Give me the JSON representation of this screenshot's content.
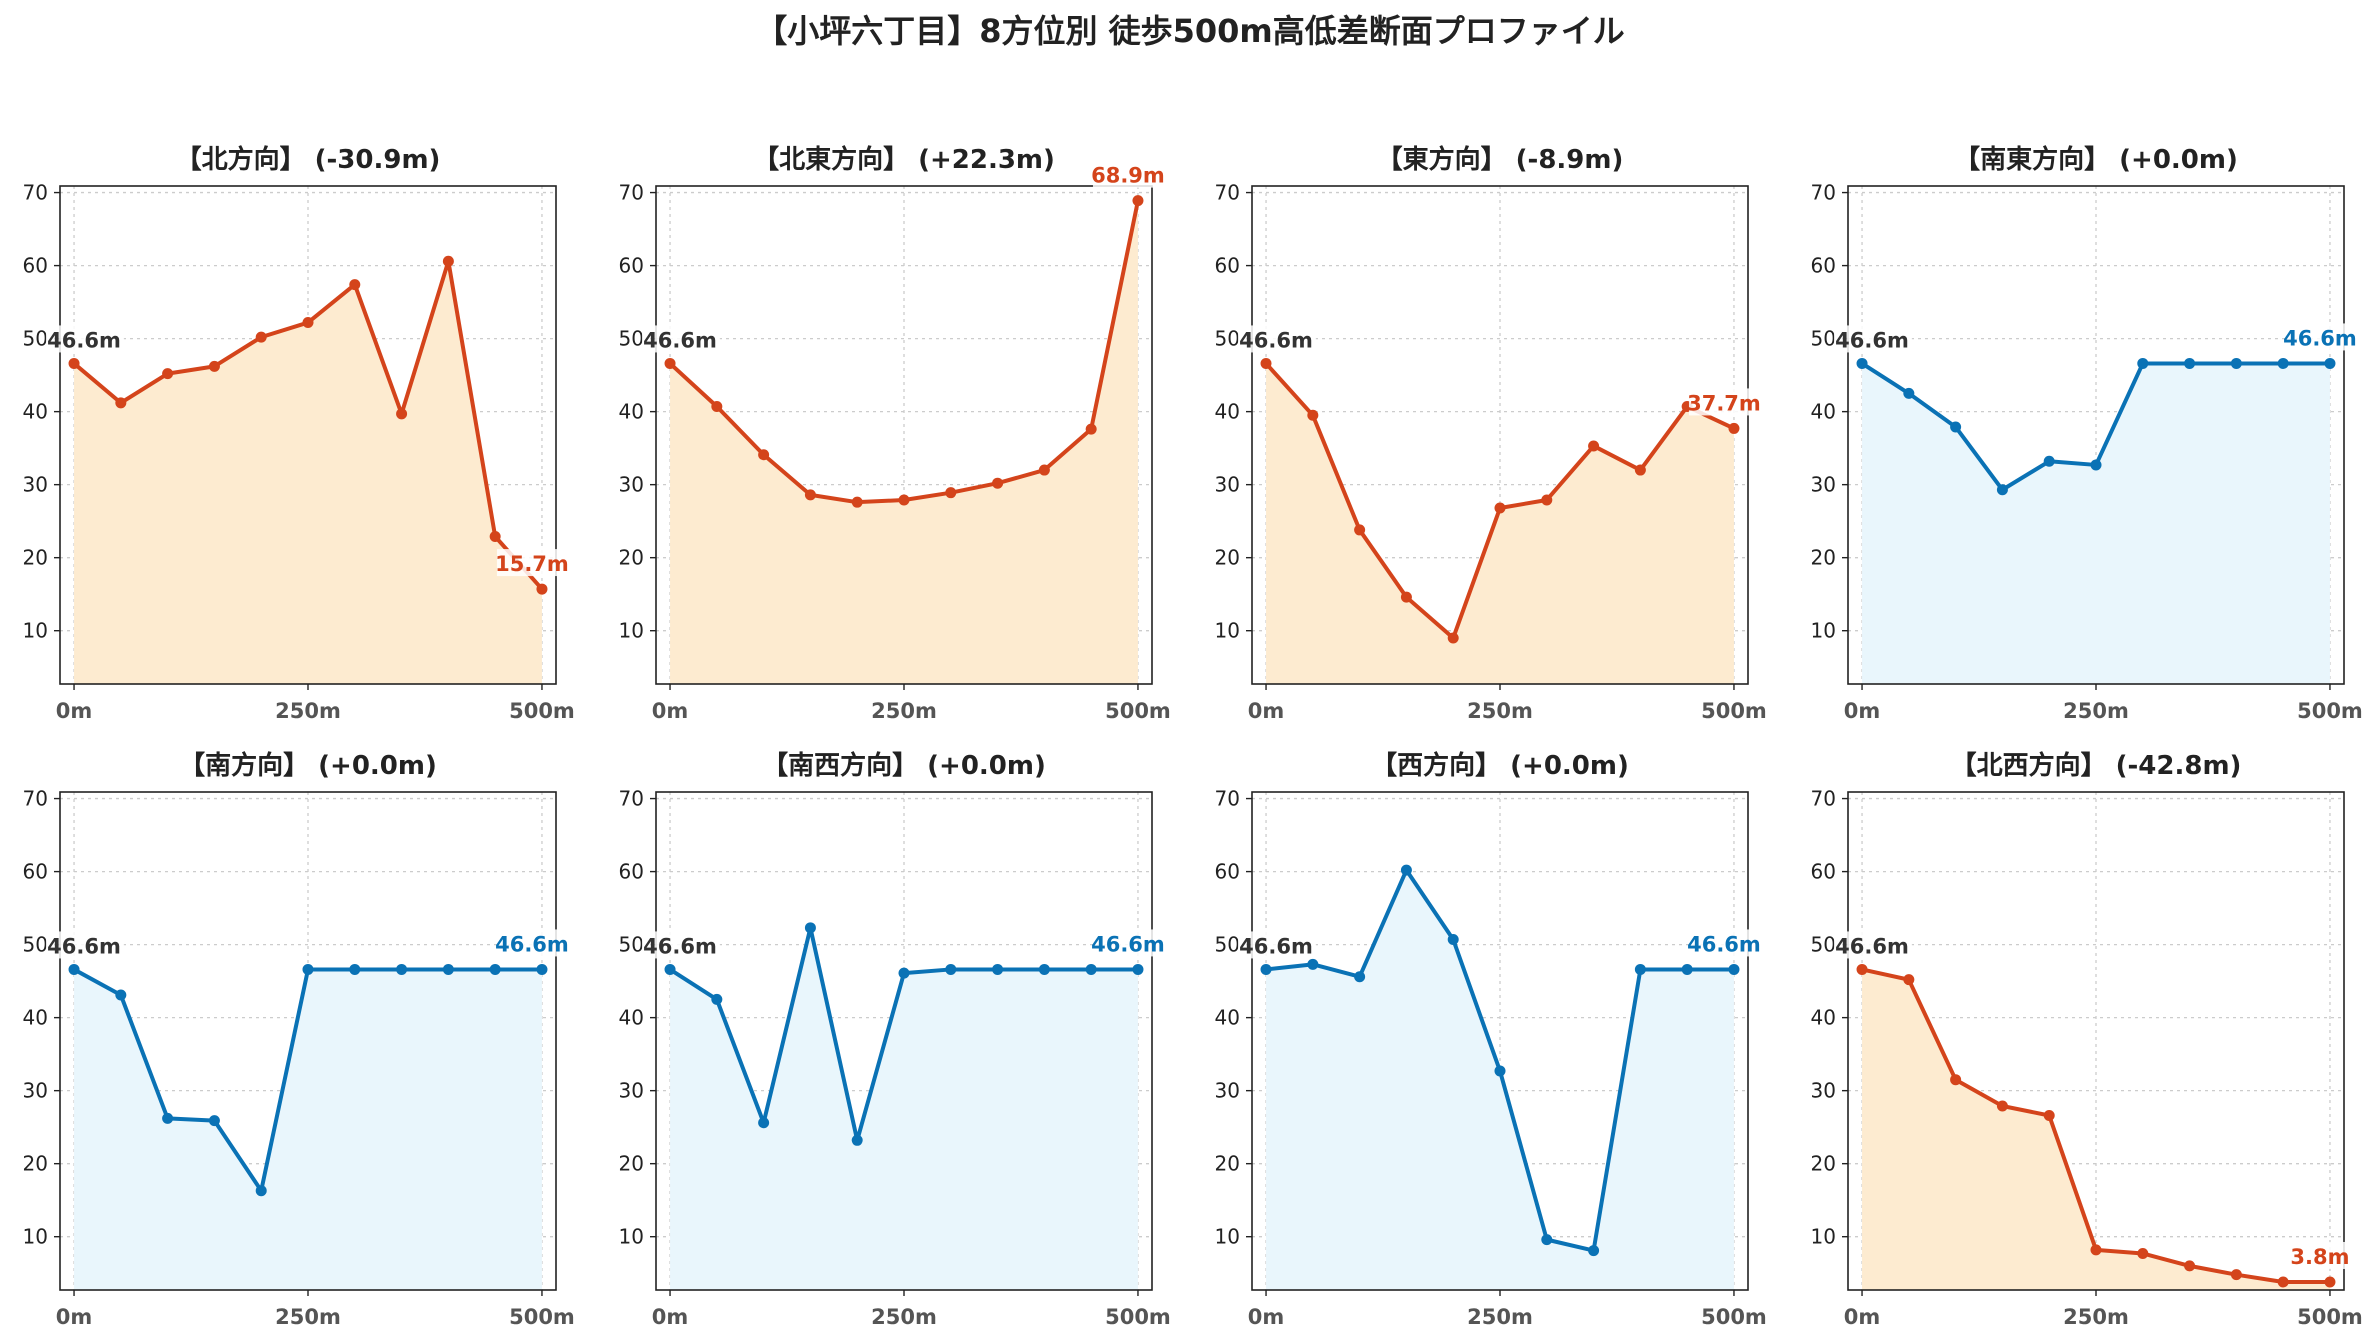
{
  "figure": {
    "title": "【小坪六丁目】8方位別 徒歩500m高低差断面プロファイル"
  },
  "colors": {
    "down_line": "#d4441b",
    "down_fill": "#fdebd0",
    "flat_line": "#0a72b5",
    "flat_fill": "#e9f6fc",
    "start_label": "#333333",
    "grid": "#cccccc"
  },
  "chart_data": [
    {
      "type": "line",
      "title": "【北方向】 (-30.9m)",
      "trend": "down",
      "x": [
        0,
        50,
        100,
        150,
        200,
        250,
        300,
        350,
        400,
        450,
        500
      ],
      "values": [
        46.6,
        41.2,
        45.2,
        46.2,
        50.2,
        52.2,
        57.4,
        39.7,
        60.6,
        22.9,
        15.7
      ],
      "start_label": "46.6m",
      "end_label": "15.7m",
      "xticks": [
        0,
        250,
        500
      ],
      "xtick_labels": [
        "0m",
        "250m",
        "500m"
      ],
      "yticks": [
        10,
        20,
        30,
        40,
        50,
        60,
        70
      ],
      "ytick_labels": [
        "10",
        "20",
        "30",
        "40",
        "50",
        "60",
        "70"
      ],
      "xlim": [
        -15,
        515
      ],
      "ylim": [
        2.7,
        70.9
      ],
      "grid": true
    },
    {
      "type": "line",
      "title": "【北東方向】 (+22.3m)",
      "trend": "down",
      "x": [
        0,
        50,
        100,
        150,
        200,
        250,
        300,
        350,
        400,
        450,
        500
      ],
      "values": [
        46.6,
        40.7,
        34.1,
        28.6,
        27.6,
        27.9,
        28.9,
        30.2,
        32.0,
        37.6,
        68.9
      ],
      "start_label": "46.6m",
      "end_label": "68.9m",
      "xticks": [
        0,
        250,
        500
      ],
      "xtick_labels": [
        "0m",
        "250m",
        "500m"
      ],
      "yticks": [
        10,
        20,
        30,
        40,
        50,
        60,
        70
      ],
      "ytick_labels": [
        "10",
        "20",
        "30",
        "40",
        "50",
        "60",
        "70"
      ],
      "xlim": [
        -15,
        515
      ],
      "ylim": [
        2.7,
        70.9
      ],
      "grid": true
    },
    {
      "type": "line",
      "title": "【東方向】 (-8.9m)",
      "trend": "down",
      "x": [
        0,
        50,
        100,
        150,
        200,
        250,
        300,
        350,
        400,
        450,
        500
      ],
      "values": [
        46.6,
        39.5,
        23.8,
        14.6,
        9.0,
        26.8,
        27.9,
        35.3,
        32.0,
        40.7,
        37.7
      ],
      "start_label": "46.6m",
      "end_label": "37.7m",
      "xticks": [
        0,
        250,
        500
      ],
      "xtick_labels": [
        "0m",
        "250m",
        "500m"
      ],
      "yticks": [
        10,
        20,
        30,
        40,
        50,
        60,
        70
      ],
      "ytick_labels": [
        "10",
        "20",
        "30",
        "40",
        "50",
        "60",
        "70"
      ],
      "xlim": [
        -15,
        515
      ],
      "ylim": [
        2.7,
        70.9
      ],
      "grid": true
    },
    {
      "type": "line",
      "title": "【南東方向】 (+0.0m)",
      "trend": "flat",
      "x": [
        0,
        50,
        100,
        150,
        200,
        250,
        300,
        350,
        400,
        450,
        500
      ],
      "values": [
        46.6,
        42.5,
        37.9,
        29.3,
        33.2,
        32.7,
        46.6,
        46.6,
        46.6,
        46.6,
        46.6
      ],
      "start_label": "46.6m",
      "end_label": "46.6m",
      "xticks": [
        0,
        250,
        500
      ],
      "xtick_labels": [
        "0m",
        "250m",
        "500m"
      ],
      "yticks": [
        10,
        20,
        30,
        40,
        50,
        60,
        70
      ],
      "ytick_labels": [
        "10",
        "20",
        "30",
        "40",
        "50",
        "60",
        "70"
      ],
      "xlim": [
        -15,
        515
      ],
      "ylim": [
        2.7,
        70.9
      ],
      "grid": true
    },
    {
      "type": "line",
      "title": "【南方向】 (+0.0m)",
      "trend": "flat",
      "x": [
        0,
        50,
        100,
        150,
        200,
        250,
        300,
        350,
        400,
        450,
        500
      ],
      "values": [
        46.6,
        43.1,
        26.2,
        25.9,
        16.3,
        46.6,
        46.6,
        46.6,
        46.6,
        46.6,
        46.6
      ],
      "start_label": "46.6m",
      "end_label": "46.6m",
      "xticks": [
        0,
        250,
        500
      ],
      "xtick_labels": [
        "0m",
        "250m",
        "500m"
      ],
      "yticks": [
        10,
        20,
        30,
        40,
        50,
        60,
        70
      ],
      "ytick_labels": [
        "10",
        "20",
        "30",
        "40",
        "50",
        "60",
        "70"
      ],
      "xlim": [
        -15,
        515
      ],
      "ylim": [
        2.7,
        70.9
      ],
      "grid": true
    },
    {
      "type": "line",
      "title": "【南西方向】 (+0.0m)",
      "trend": "flat",
      "x": [
        0,
        50,
        100,
        150,
        200,
        250,
        300,
        350,
        400,
        450,
        500
      ],
      "values": [
        46.6,
        42.5,
        25.6,
        52.3,
        23.2,
        46.1,
        46.6,
        46.6,
        46.6,
        46.6,
        46.6
      ],
      "start_label": "46.6m",
      "end_label": "46.6m",
      "xticks": [
        0,
        250,
        500
      ],
      "xtick_labels": [
        "0m",
        "250m",
        "500m"
      ],
      "yticks": [
        10,
        20,
        30,
        40,
        50,
        60,
        70
      ],
      "ytick_labels": [
        "10",
        "20",
        "30",
        "40",
        "50",
        "60",
        "70"
      ],
      "xlim": [
        -15,
        515
      ],
      "ylim": [
        2.7,
        70.9
      ],
      "grid": true
    },
    {
      "type": "line",
      "title": "【西方向】 (+0.0m)",
      "trend": "flat",
      "x": [
        0,
        50,
        100,
        150,
        200,
        250,
        300,
        350,
        400,
        450,
        500
      ],
      "values": [
        46.6,
        47.3,
        45.6,
        60.2,
        50.7,
        32.7,
        9.6,
        8.1,
        46.6,
        46.6,
        46.6
      ],
      "start_label": "46.6m",
      "end_label": "46.6m",
      "xticks": [
        0,
        250,
        500
      ],
      "xtick_labels": [
        "0m",
        "250m",
        "500m"
      ],
      "yticks": [
        10,
        20,
        30,
        40,
        50,
        60,
        70
      ],
      "ytick_labels": [
        "10",
        "20",
        "30",
        "40",
        "50",
        "60",
        "70"
      ],
      "xlim": [
        -15,
        515
      ],
      "ylim": [
        2.7,
        70.9
      ],
      "grid": true
    },
    {
      "type": "line",
      "title": "【北西方向】 (-42.8m)",
      "trend": "down",
      "x": [
        0,
        50,
        100,
        150,
        200,
        250,
        300,
        350,
        400,
        450,
        500
      ],
      "values": [
        46.6,
        45.2,
        31.5,
        27.9,
        26.6,
        8.2,
        7.7,
        6.0,
        4.8,
        3.8,
        3.8
      ],
      "start_label": "46.6m",
      "end_label": "3.8m",
      "xticks": [
        0,
        250,
        500
      ],
      "xtick_labels": [
        "0m",
        "250m",
        "500m"
      ],
      "yticks": [
        10,
        20,
        30,
        40,
        50,
        60,
        70
      ],
      "ytick_labels": [
        "10",
        "20",
        "30",
        "40",
        "50",
        "60",
        "70"
      ],
      "xlim": [
        -15,
        515
      ],
      "ylim": [
        2.7,
        70.9
      ],
      "grid": true
    }
  ]
}
